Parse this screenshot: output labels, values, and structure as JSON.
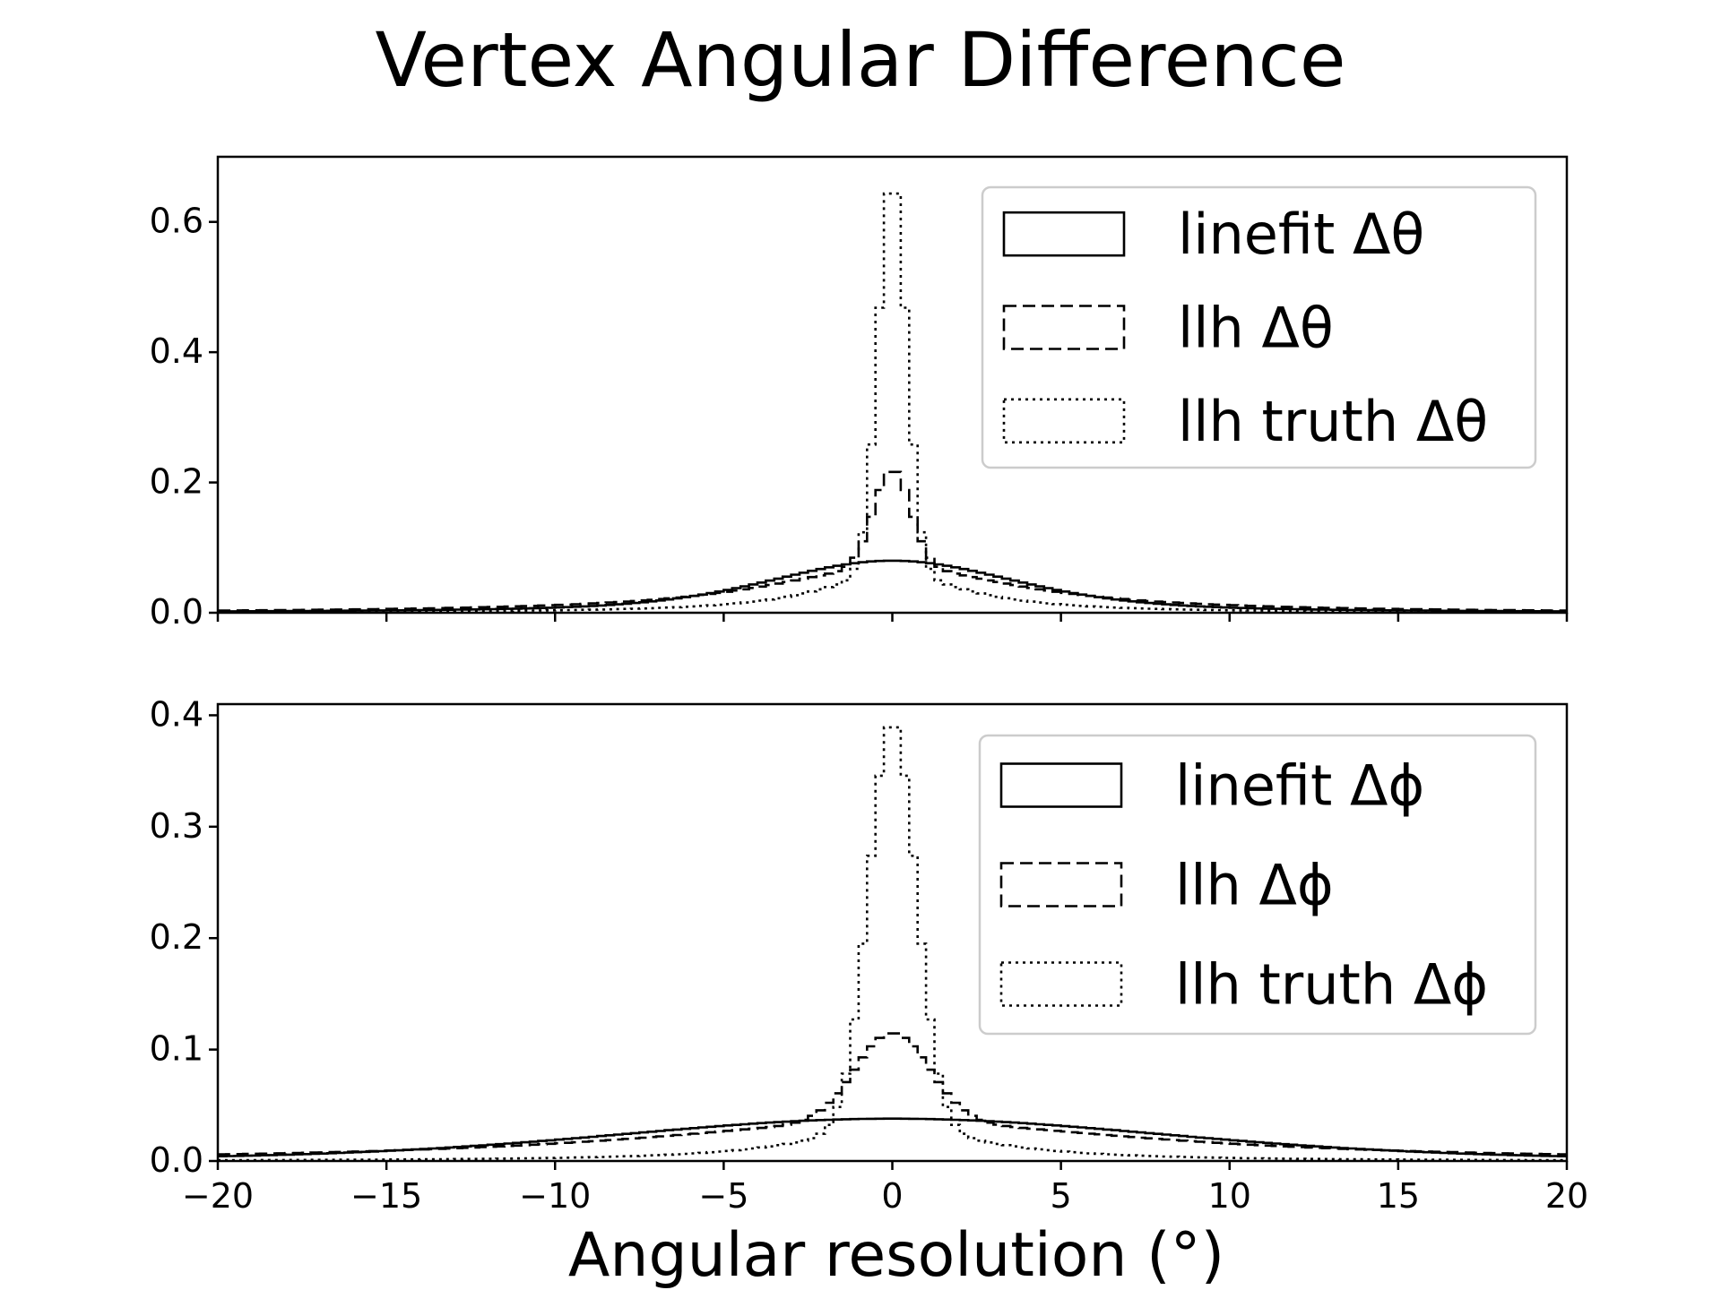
{
  "figure": {
    "title": "Vertex Angular Difference",
    "xlabel": "Angular resolution (°)"
  },
  "chart_data": [
    {
      "type": "histogram-step",
      "xlim": [
        -20,
        20
      ],
      "ylim": [
        0,
        0.7
      ],
      "yticks": [
        0.0,
        0.2,
        0.4,
        0.6
      ],
      "xticks": [
        -20,
        -15,
        -10,
        -5,
        0,
        5,
        10,
        15,
        20
      ],
      "show_xticklabels": false,
      "legend_position": "top-right",
      "series": [
        {
          "name": "linefit Δθ",
          "style": "solid",
          "peak": 0.08,
          "shape": "gaussian+lorentz",
          "width_g": 3.5,
          "width_l": 5.0,
          "mix": 0.45
        },
        {
          "name": "llh Δθ",
          "style": "dashed",
          "peak": 0.22,
          "shape": "core+tail",
          "core_width": 0.55,
          "tail_peak": 0.07,
          "tail_width": 4.5
        },
        {
          "name": "llh truth Δθ",
          "style": "dotted",
          "peak": 0.67,
          "shape": "core+tail",
          "core_width": 0.42,
          "tail_peak": 0.06,
          "tail_width": 2.6
        }
      ]
    },
    {
      "type": "histogram-step",
      "xlim": [
        -20,
        20
      ],
      "ylim": [
        0,
        0.41
      ],
      "yticks": [
        0.0,
        0.1,
        0.2,
        0.3,
        0.4
      ],
      "xticks": [
        -20,
        -15,
        -10,
        -5,
        0,
        5,
        10,
        15,
        20
      ],
      "show_xticklabels": true,
      "legend_position": "top-right",
      "series": [
        {
          "name": "linefit Δϕ",
          "style": "solid",
          "peak": 0.038,
          "shape": "broad",
          "width_g": 8.0,
          "width_l": 12.0,
          "mix": 0.3
        },
        {
          "name": "llh Δϕ",
          "style": "dashed",
          "peak": 0.115,
          "shape": "core+tail",
          "core_width": 1.1,
          "tail_peak": 0.035,
          "tail_width": 9.0
        },
        {
          "name": "llh truth Δϕ",
          "style": "dotted",
          "peak": 0.395,
          "shape": "core+tail",
          "core_width": 0.7,
          "tail_peak": 0.03,
          "tail_width": 3.2
        }
      ]
    }
  ]
}
